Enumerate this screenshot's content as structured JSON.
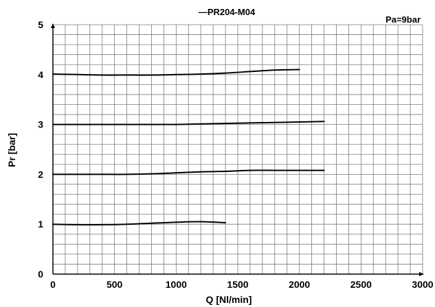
{
  "chart_data": {
    "type": "line",
    "title": "PR204-M04",
    "annotation": "Pa=9bar",
    "xlabel": "Q [Nl/min]",
    "ylabel": "Pr [bar]",
    "xlim": [
      0,
      3000
    ],
    "ylim": [
      0,
      5
    ],
    "xticks": [
      0,
      500,
      1000,
      1500,
      2000,
      2500,
      3000
    ],
    "yticks": [
      0,
      1,
      2,
      3,
      4,
      5
    ],
    "grid": true,
    "line_color": "#000000",
    "series": [
      {
        "x": [
          0,
          200,
          400,
          600,
          800,
          1000,
          1200,
          1400
        ],
        "y": [
          1.0,
          0.99,
          0.99,
          1.0,
          1.02,
          1.04,
          1.05,
          1.03
        ]
      },
      {
        "x": [
          0,
          200,
          400,
          600,
          800,
          1000,
          1200,
          1400,
          1600,
          1800,
          2000,
          2200
        ],
        "y": [
          2.0,
          2.0,
          2.0,
          2.0,
          2.01,
          2.03,
          2.05,
          2.06,
          2.08,
          2.08,
          2.08,
          2.08
        ]
      },
      {
        "x": [
          0,
          200,
          400,
          600,
          800,
          1000,
          1200,
          1400,
          1600,
          1800,
          2000,
          2200
        ],
        "y": [
          3.0,
          3.0,
          3.0,
          3.0,
          3.0,
          3.0,
          3.01,
          3.02,
          3.03,
          3.04,
          3.05,
          3.06
        ]
      },
      {
        "x": [
          0,
          200,
          400,
          600,
          800,
          1000,
          1200,
          1400,
          1600,
          1800,
          2000
        ],
        "y": [
          4.01,
          4.0,
          3.99,
          3.99,
          3.99,
          4.0,
          4.01,
          4.03,
          4.06,
          4.09,
          4.1
        ]
      }
    ]
  }
}
